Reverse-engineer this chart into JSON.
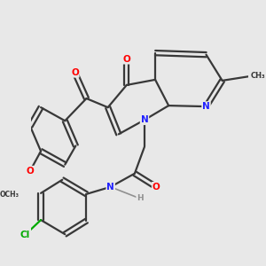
{
  "bg_color": "#e8e8e8",
  "bond_color": "#383838",
  "bond_width": 1.6,
  "dbo": 0.06,
  "atom_colors": {
    "C": "#383838",
    "N": "#2020ff",
    "O": "#ff0000",
    "Cl": "#00aa00",
    "H": "#909090"
  },
  "xlim": [
    -2.8,
    2.8
  ],
  "ylim": [
    -2.8,
    2.8
  ]
}
